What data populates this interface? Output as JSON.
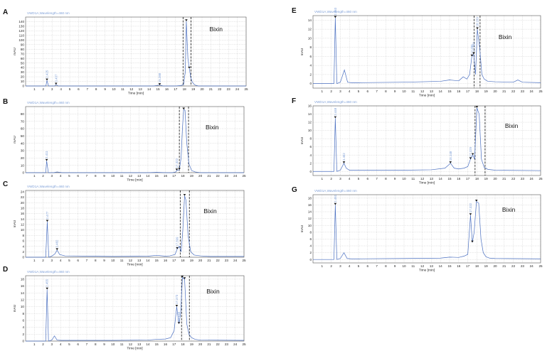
{
  "chart_data": [
    {
      "type": "line",
      "panel_label": "A",
      "title": "VWD1A,Wavelength=460 nm",
      "xlabel": "Time [min]",
      "ylabel": "mAU",
      "xlim": [
        0,
        25
      ],
      "ylim": [
        0,
        150
      ],
      "xticks": [
        1,
        2,
        3,
        4,
        5,
        6,
        7,
        8,
        9,
        10,
        11,
        12,
        13,
        14,
        15,
        16,
        17,
        18,
        19,
        20,
        21,
        22,
        23,
        24,
        25
      ],
      "yticks": [
        0,
        10,
        20,
        30,
        40,
        50,
        60,
        70,
        80,
        90,
        100,
        110,
        120,
        130,
        140
      ],
      "annotation": "Bixin",
      "series": [
        {
          "x": [
            0,
            2.3,
            2.42,
            2.6,
            3.0,
            3.3,
            3.45,
            3.7,
            4.5,
            8,
            14.5,
            15.2,
            15.6,
            16.2,
            17.0,
            17.6,
            17.9,
            18.1,
            18.22,
            18.4,
            18.55,
            18.7,
            18.9,
            19.2,
            19.6,
            20.5,
            25
          ],
          "y": [
            0,
            0,
            12,
            0,
            0,
            0,
            3,
            0,
            0,
            0,
            0,
            2,
            0,
            0,
            0,
            1,
            3,
            30,
            141,
            60,
            40,
            20,
            8,
            2,
            0,
            0,
            0
          ]
        }
      ],
      "peak_labels": [
        {
          "x": 2.42,
          "y": 12,
          "text": "2.425"
        },
        {
          "x": 3.45,
          "y": 3,
          "text": "3.437"
        },
        {
          "x": 15.2,
          "y": 2,
          "text": "15.288"
        },
        {
          "x": 18.22,
          "y": 141,
          "text": ""
        },
        {
          "x": 18.55,
          "y": 38,
          "text": ""
        }
      ],
      "dashed_lines": [
        17.85,
        18.75
      ]
    },
    {
      "type": "line",
      "panel_label": "B",
      "title": "VWD1A,Wavelength=460 nm",
      "xlabel": "Time [min]",
      "ylabel": "mAU",
      "xlim": [
        0,
        25
      ],
      "ylim": [
        0,
        90
      ],
      "xticks": [
        1,
        2,
        3,
        4,
        5,
        6,
        7,
        8,
        9,
        10,
        11,
        12,
        13,
        14,
        15,
        16,
        17,
        18,
        19,
        20,
        21,
        22,
        23,
        24,
        25
      ],
      "yticks": [
        0,
        10,
        20,
        30,
        40,
        50,
        60,
        70,
        80
      ],
      "annotation": "Bixin",
      "series": [
        {
          "x": [
            0,
            2.3,
            2.41,
            2.6,
            3.2,
            3.6,
            4.2,
            10,
            14,
            15,
            16,
            16.8,
            17.2,
            17.3,
            17.6,
            17.8,
            17.95,
            18.1,
            18.25,
            18.45,
            18.7,
            19.0,
            19.4,
            20,
            25
          ],
          "y": [
            0,
            0,
            16,
            0,
            0,
            1,
            0,
            0,
            0,
            0.5,
            0,
            0,
            1,
            3,
            4,
            20,
            60,
            86,
            85,
            40,
            12,
            3,
            1,
            0,
            0
          ]
        }
      ],
      "peak_labels": [
        {
          "x": 2.41,
          "y": 16,
          "text": "2.411"
        },
        {
          "x": 17.3,
          "y": 3,
          "text": "17.322"
        },
        {
          "x": 17.6,
          "y": 4,
          "text": ""
        },
        {
          "x": 18.1,
          "y": 86,
          "text": ""
        }
      ],
      "dashed_lines": [
        17.6,
        18.65
      ]
    },
    {
      "type": "line",
      "panel_label": "C",
      "title": "VWD1A,Wavelength=460 nm",
      "xlabel": "Time [min]",
      "ylabel": "mAU",
      "xlim": [
        0,
        25
      ],
      "ylim": [
        0,
        24.5
      ],
      "xticks": [
        1,
        2,
        3,
        4,
        5,
        6,
        7,
        8,
        9,
        10,
        11,
        12,
        13,
        14,
        15,
        16,
        17,
        18,
        19,
        20,
        21,
        22,
        23,
        24,
        25
      ],
      "yticks": [
        0,
        2,
        4,
        6,
        8,
        10,
        12,
        14,
        16,
        18,
        20,
        22,
        24
      ],
      "annotation": "Bixin",
      "series": [
        {
          "x": [
            0,
            2.3,
            2.48,
            2.65,
            3.0,
            3.35,
            3.6,
            3.9,
            4.5,
            10,
            14,
            15,
            16,
            16.5,
            17.1,
            17.35,
            17.6,
            17.8,
            18.0,
            18.2,
            18.35,
            18.6,
            18.9,
            19.3,
            20,
            21,
            25
          ],
          "y": [
            0,
            0,
            13,
            0,
            0.4,
            1.2,
            2.6,
            1.0,
            0.5,
            0.3,
            0.4,
            0.7,
            0.4,
            0.5,
            1.0,
            3.0,
            4.0,
            2.0,
            10.0,
            22.5,
            21.0,
            8.0,
            2.0,
            0.8,
            0.5,
            0.3,
            0.3
          ]
        }
      ],
      "peak_labels": [
        {
          "x": 2.48,
          "y": 13,
          "text": "2.477"
        },
        {
          "x": 3.6,
          "y": 2.6,
          "text": "3.482"
        },
        {
          "x": 17.35,
          "y": 3,
          "text": "17.399"
        },
        {
          "x": 18.2,
          "y": 22.5,
          "text": ""
        }
      ],
      "dashed_lines": [
        17.7,
        18.75
      ]
    },
    {
      "type": "line",
      "panel_label": "D",
      "title": "VWD1A,Wavelength=460 nm",
      "xlabel": "Time [min]",
      "ylabel": "mAU",
      "xlim": [
        0,
        25
      ],
      "ylim": [
        0,
        19
      ],
      "xticks": [
        1,
        2,
        3,
        4,
        5,
        6,
        7,
        8,
        9,
        10,
        11,
        12,
        13,
        14,
        15,
        16,
        17,
        18,
        19,
        20,
        21,
        22,
        23,
        24,
        25
      ],
      "yticks": [
        0,
        2,
        4,
        6,
        8,
        10,
        12,
        14,
        16,
        18
      ],
      "annotation": "Bixin",
      "series": [
        {
          "x": [
            0,
            2.3,
            2.46,
            2.62,
            3.0,
            3.3,
            3.6,
            4.0,
            10,
            14,
            15,
            16,
            16.6,
            17.0,
            17.3,
            17.55,
            17.75,
            17.95,
            18.2,
            18.45,
            18.7,
            19.0,
            19.4,
            20,
            25
          ],
          "y": [
            0,
            0,
            15,
            0,
            0.3,
            1.5,
            0.3,
            0.2,
            0.2,
            0.3,
            0.5,
            0.6,
            1.0,
            3.0,
            10.0,
            5.0,
            8.0,
            18.5,
            18.0,
            5.0,
            2.0,
            1.0,
            0.5,
            0.3,
            0.2
          ]
        }
      ],
      "peak_labels": [
        {
          "x": 2.46,
          "y": 15,
          "text": "2.455"
        },
        {
          "x": 17.3,
          "y": 10,
          "text": "17.373"
        },
        {
          "x": 17.55,
          "y": 5,
          "text": "17.645"
        },
        {
          "x": 17.95,
          "y": 18.5,
          "text": ""
        },
        {
          "x": 18.2,
          "y": 18,
          "text": ""
        }
      ],
      "dashed_lines": [
        17.85,
        18.75
      ]
    },
    {
      "type": "line",
      "panel_label": "E",
      "title": "VWD1A,Wavelength=460 nm",
      "xlabel": "Time [min]",
      "ylabel": "mAU",
      "xlim": [
        0,
        25
      ],
      "ylim": [
        -1,
        15
      ],
      "xticks": [
        1,
        2,
        3,
        4,
        5,
        6,
        7,
        8,
        9,
        10,
        11,
        12,
        13,
        14,
        15,
        16,
        17,
        18,
        19,
        20,
        21,
        22,
        23,
        24,
        25
      ],
      "yticks": [
        0,
        2,
        4,
        6,
        8,
        10,
        12,
        14
      ],
      "annotation": "Bixin",
      "series": [
        {
          "x": [
            0,
            2.3,
            2.45,
            2.62,
            3.0,
            3.45,
            3.8,
            4.2,
            5,
            10,
            14,
            15,
            16,
            16.5,
            16.9,
            17.2,
            17.45,
            17.65,
            17.85,
            18.05,
            18.3,
            18.55,
            18.8,
            19.2,
            20,
            22,
            22.5,
            23,
            25
          ],
          "y": [
            0,
            0,
            14.5,
            0,
            0.3,
            3.0,
            0.3,
            0.2,
            0.2,
            0.3,
            0.5,
            0.8,
            0.6,
            1.5,
            1.0,
            2.0,
            6.0,
            6.5,
            2.0,
            12.0,
            8.0,
            2.0,
            1.0,
            0.5,
            0.4,
            0.3,
            0.8,
            0.3,
            0.2
          ]
        }
      ],
      "peak_labels": [
        {
          "x": 2.45,
          "y": 14.5,
          "text": "2.463"
        },
        {
          "x": 17.45,
          "y": 6,
          "text": "17.290"
        },
        {
          "x": 17.65,
          "y": 6.5,
          "text": "17.583"
        },
        {
          "x": 18.05,
          "y": 12,
          "text": "18.159"
        }
      ],
      "dashed_lines": [
        17.7,
        18.35
      ]
    },
    {
      "type": "line",
      "panel_label": "F",
      "title": "VWD1A,Wavelength=460 nm",
      "xlabel": "Time [min]",
      "ylabel": "mAU",
      "xlim": [
        0,
        25
      ],
      "ylim": [
        -1,
        16
      ],
      "xticks": [
        1,
        2,
        3,
        4,
        5,
        6,
        7,
        8,
        9,
        10,
        11,
        12,
        13,
        14,
        15,
        16,
        17,
        18,
        19,
        20,
        21,
        22,
        23,
        24,
        25
      ],
      "yticks": [
        0,
        2,
        4,
        6,
        8,
        10,
        12,
        14,
        16
      ],
      "annotation": "Bixin",
      "series": [
        {
          "x": [
            0,
            2.3,
            2.45,
            2.62,
            3.0,
            3.4,
            3.65,
            4.0,
            4.6,
            10,
            13,
            14.5,
            15.1,
            15.5,
            16,
            16.6,
            17.0,
            17.3,
            17.55,
            17.75,
            18.0,
            18.25,
            18.5,
            18.8,
            19.2,
            20,
            25
          ],
          "y": [
            0,
            0,
            13,
            0,
            0.3,
            2.0,
            0.8,
            0.3,
            0.3,
            0.3,
            0.4,
            0.8,
            2.0,
            0.8,
            0.6,
            0.8,
            1.2,
            3.0,
            4.0,
            3.0,
            15.5,
            14.0,
            3.0,
            1.0,
            0.5,
            0.3,
            0.2
          ]
        }
      ],
      "peak_labels": [
        {
          "x": 2.45,
          "y": 13,
          "text": "2.448"
        },
        {
          "x": 3.4,
          "y": 2,
          "text": "3.452"
        },
        {
          "x": 15.1,
          "y": 2,
          "text": "15.148"
        },
        {
          "x": 17.3,
          "y": 3,
          "text": "17.329"
        },
        {
          "x": 17.55,
          "y": 4,
          "text": ""
        },
        {
          "x": 18.0,
          "y": 15.5,
          "text": ""
        }
      ],
      "dashed_lines": [
        17.8,
        18.9
      ]
    },
    {
      "type": "line",
      "panel_label": "G",
      "title": "VWD1A,Wavelength=460 nm",
      "xlabel": "Time [min]",
      "ylabel": "mAU",
      "xlim": [
        0,
        25
      ],
      "ylim": [
        -1,
        19
      ],
      "xticks": [
        1,
        2,
        3,
        4,
        5,
        6,
        7,
        8,
        9,
        10,
        11,
        12,
        13,
        14,
        15,
        16,
        17,
        18,
        19,
        20,
        21,
        22,
        23,
        24,
        25
      ],
      "yticks": [
        0,
        2,
        4,
        6,
        8,
        10,
        12,
        14,
        16,
        18
      ],
      "annotation": "Bixin",
      "series": [
        {
          "x": [
            0,
            2.3,
            2.45,
            2.62,
            3.0,
            3.4,
            3.75,
            4.2,
            5,
            10,
            14,
            15,
            16,
            16.6,
            17.0,
            17.3,
            17.5,
            17.7,
            17.95,
            18.2,
            18.45,
            18.7,
            19.0,
            19.4,
            20,
            25
          ],
          "y": [
            0,
            0,
            16,
            0,
            0.3,
            2.0,
            0.3,
            0.2,
            0.2,
            0.3,
            0.4,
            0.7,
            0.6,
            1.0,
            1.5,
            13.0,
            5.0,
            8.0,
            17.0,
            16.5,
            6.0,
            2.0,
            0.8,
            0.4,
            0.3,
            0.2
          ]
        }
      ],
      "peak_labels": [
        {
          "x": 2.45,
          "y": 16,
          "text": "2.451"
        },
        {
          "x": 17.3,
          "y": 13,
          "text": "17.322"
        },
        {
          "x": 17.5,
          "y": 5,
          "text": ""
        },
        {
          "x": 17.95,
          "y": 17,
          "text": ""
        }
      ],
      "dashed_lines": []
    }
  ]
}
